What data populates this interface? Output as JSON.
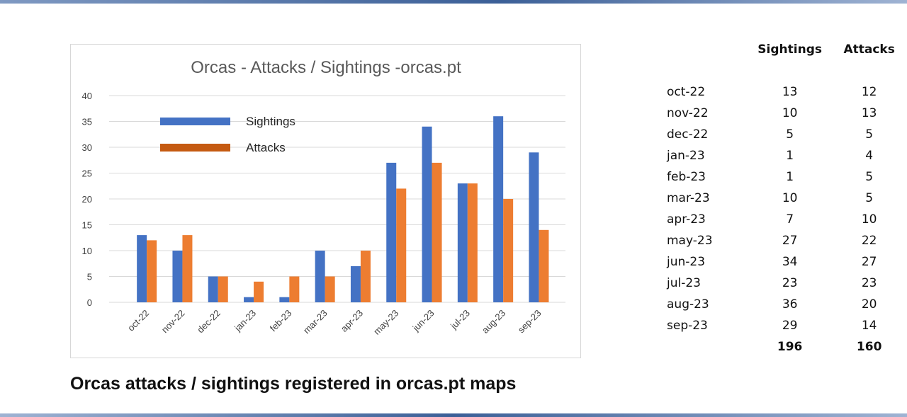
{
  "caption": "Orcas attacks / sightings registered in orcas.pt maps",
  "colors": {
    "sightings": "#4472c4",
    "attacks": "#ed7d31",
    "attacks_legend": "#c55a11",
    "grid": "#d9d9d9"
  },
  "chart_data": {
    "type": "bar",
    "title": "Orcas - Attacks / Sightings -orcas.pt",
    "xlabel": "",
    "ylabel": "",
    "ylim": [
      0,
      40
    ],
    "yticks": [
      "0",
      "5",
      "10",
      "15",
      "20",
      "25",
      "30",
      "35",
      "40"
    ],
    "categories": [
      "oct-22",
      "nov-22",
      "dec-22",
      "jan-23",
      "feb-23",
      "mar-23",
      "apr-23",
      "may-23",
      "jun-23",
      "jul-23",
      "aug-23",
      "sep-23"
    ],
    "series": [
      {
        "name": "Sightings",
        "values": [
          13,
          10,
          5,
          1,
          1,
          10,
          7,
          27,
          34,
          23,
          36,
          29
        ]
      },
      {
        "name": "Attacks",
        "values": [
          12,
          13,
          5,
          4,
          5,
          5,
          10,
          22,
          27,
          23,
          20,
          14
        ]
      }
    ],
    "grid": true,
    "legend": "top-left"
  },
  "table": {
    "headers": [
      "",
      "Sightings",
      "Attacks"
    ],
    "rows": [
      [
        "oct-22",
        "13",
        "12"
      ],
      [
        "nov-22",
        "10",
        "13"
      ],
      [
        "dec-22",
        "5",
        "5"
      ],
      [
        "jan-23",
        "1",
        "4"
      ],
      [
        "feb-23",
        "1",
        "5"
      ],
      [
        "mar-23",
        "10",
        "5"
      ],
      [
        "apr-23",
        "7",
        "10"
      ],
      [
        "may-23",
        "27",
        "22"
      ],
      [
        "jun-23",
        "34",
        "27"
      ],
      [
        "jul-23",
        "23",
        "23"
      ],
      [
        "aug-23",
        "36",
        "20"
      ],
      [
        "sep-23",
        "29",
        "14"
      ]
    ],
    "totals": [
      "",
      "196",
      "160"
    ]
  }
}
